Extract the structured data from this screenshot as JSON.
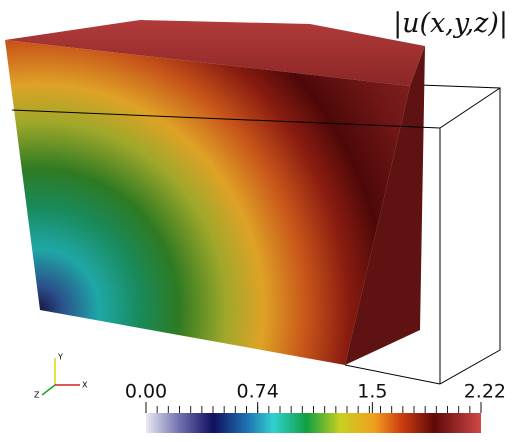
{
  "title": "|u(x,y,z)|",
  "axes": {
    "x": "X",
    "y": "Y",
    "z": "Z"
  },
  "colorbar": {
    "range": [
      0,
      2.22
    ],
    "ticks": [
      {
        "value": 0,
        "label": "0.00"
      },
      {
        "value": 0.74,
        "label": "0.74"
      },
      {
        "value": 1.5,
        "label": "1.5"
      },
      {
        "value": 2.22,
        "label": "2.22"
      }
    ]
  }
}
